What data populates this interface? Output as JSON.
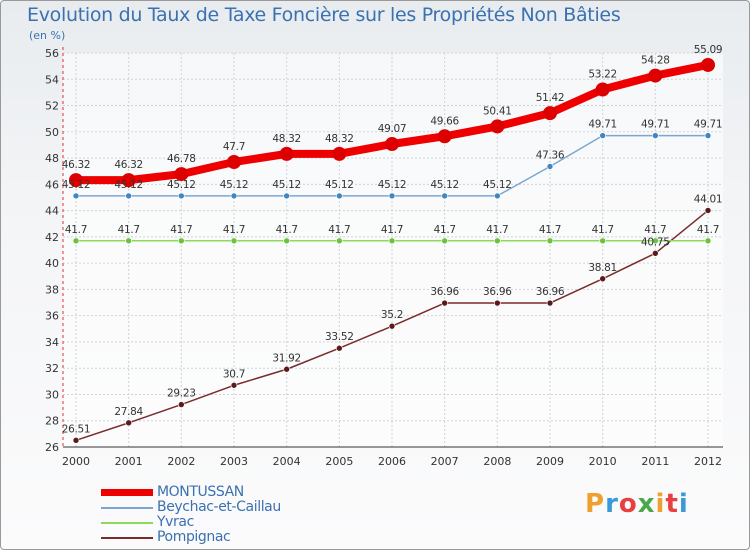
{
  "title": "Evolution du Taux de Taxe Foncière sur les Propriétés Non Bâties",
  "unit": "(en %)",
  "logo": {
    "text": "Proxiti",
    "colors": [
      "#f0a030",
      "#3a9ad9",
      "#e84040",
      "#4aa84a",
      "#f0a030",
      "#e84040",
      "#3a9ad9"
    ]
  },
  "chart_data": {
    "type": "line",
    "title": "Evolution du Taux de Taxe Foncière sur les Propriétés Non Bâties",
    "ylabel": "(en %)",
    "xlabel": "",
    "categories": [
      "2000",
      "2001",
      "2002",
      "2003",
      "2004",
      "2005",
      "2006",
      "2007",
      "2008",
      "2009",
      "2010",
      "2011",
      "2012"
    ],
    "ylim": [
      26,
      56
    ],
    "yticks": [
      26,
      28,
      30,
      32,
      34,
      36,
      38,
      40,
      42,
      44,
      46,
      48,
      50,
      52,
      54,
      56
    ],
    "grid": true,
    "series": [
      {
        "name": "MONTUSSAN",
        "color": "#ee0000",
        "marker": "#dd0000",
        "values": [
          46.32,
          46.32,
          46.78,
          47.7,
          48.32,
          48.32,
          49.07,
          49.66,
          50.41,
          51.42,
          53.22,
          54.28,
          55.09
        ],
        "labels": [
          "46.32",
          "46.32",
          "46.78",
          "47.7",
          "48.32",
          "48.32",
          "49.07",
          "49.66",
          "50.41",
          "51.42",
          "53.22",
          "54.28",
          "55.09"
        ]
      },
      {
        "name": "Beychac-et-Caillau",
        "color": "#7aa6cf",
        "marker": "#3f86c4",
        "values": [
          45.12,
          45.12,
          45.12,
          45.12,
          45.12,
          45.12,
          45.12,
          45.12,
          45.12,
          47.36,
          49.71,
          49.71,
          49.71
        ],
        "labels": [
          "45.12",
          "45.12",
          "45.12",
          "45.12",
          "45.12",
          "45.12",
          "45.12",
          "45.12",
          "45.12",
          "47.36",
          "49.71",
          "49.71",
          "49.71"
        ]
      },
      {
        "name": "Yvrac",
        "color": "#8fd85a",
        "marker": "#6cc23a",
        "values": [
          41.7,
          41.7,
          41.7,
          41.7,
          41.7,
          41.7,
          41.7,
          41.7,
          41.7,
          41.7,
          41.7,
          41.7,
          41.7
        ],
        "labels": [
          "41.7",
          "41.7",
          "41.7",
          "41.7",
          "41.7",
          "41.7",
          "41.7",
          "41.7",
          "41.7",
          "41.7",
          "41.7",
          "41.7",
          "41.7"
        ]
      },
      {
        "name": "Pompignac",
        "color": "#7a2b2b",
        "marker": "#5a1a1a",
        "values": [
          26.51,
          27.84,
          29.23,
          30.7,
          31.92,
          33.52,
          35.2,
          36.96,
          36.96,
          36.96,
          38.81,
          40.75,
          44.01
        ],
        "labels": [
          "26.51",
          "27.84",
          "29.23",
          "30.7",
          "31.92",
          "33.52",
          "35.2",
          "36.96",
          "36.96",
          "36.96",
          "38.81",
          "40.75",
          "44.01"
        ]
      }
    ]
  }
}
